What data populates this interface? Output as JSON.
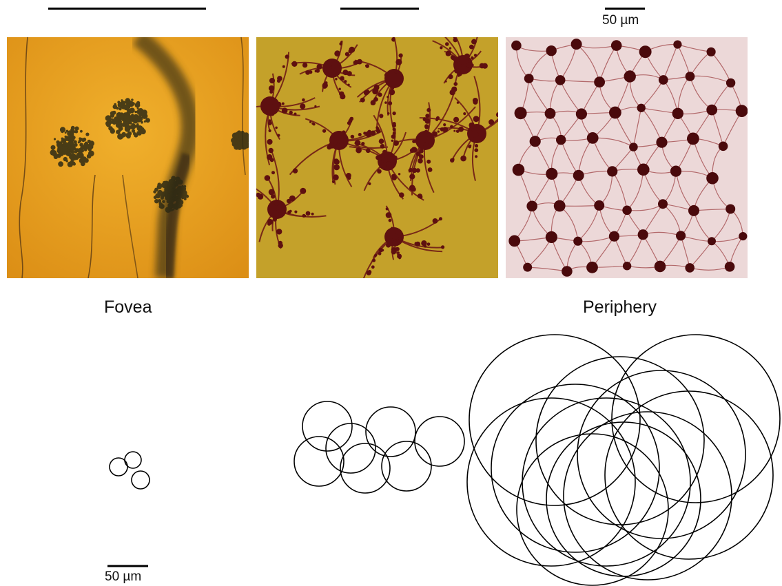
{
  "scale_bars": {
    "top_label": "50 µm",
    "bottom_label": "50 µm"
  },
  "labels": {
    "left": "Fovea",
    "right": "Periphery"
  },
  "panels": [
    {
      "name": "fovea-micrograph",
      "background": "#e9a020",
      "stain": "#2e2a14"
    },
    {
      "name": "mid-retina-micrograph",
      "background": "#c9a62a",
      "stain": "#5e1010"
    },
    {
      "name": "periphery-micrograph",
      "background": "#ecd8d8",
      "stain": "#5b0d10"
    }
  ],
  "colors": {
    "outline": "#000000",
    "fovea_bg": "#e9a020",
    "mid_bg": "#c9a62a",
    "periph_bg": "#ecd8d8",
    "cell_dark": "#4a0a0c"
  }
}
